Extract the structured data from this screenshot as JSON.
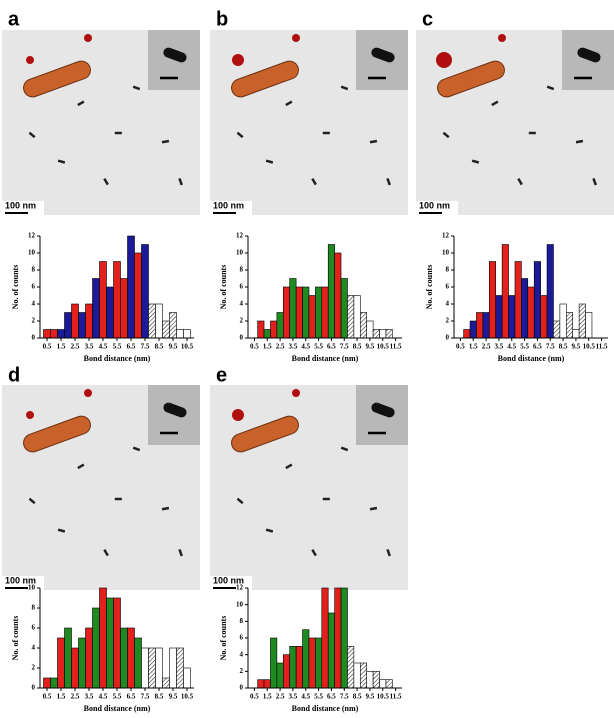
{
  "panels": [
    {
      "label": "a",
      "scale_bar": "100 nm"
    },
    {
      "label": "b",
      "scale_bar": "100 nm"
    },
    {
      "label": "c",
      "scale_bar": "100 nm"
    },
    {
      "label": "d",
      "scale_bar": "100 nm"
    },
    {
      "label": "e",
      "scale_bar": "100 nm"
    }
  ],
  "chart_data": [
    {
      "type": "bar",
      "x_label": "Bond distance (nm)",
      "y_label": "No. of counts",
      "x": [
        0.5,
        1.0,
        1.5,
        2.0,
        2.5,
        3.0,
        3.5,
        4.0,
        4.5,
        5.0,
        5.5,
        6.0,
        6.5,
        7.0,
        7.5,
        8.0,
        8.5,
        9.0,
        9.5,
        10.0,
        10.5
      ],
      "values": [
        1,
        1,
        1,
        3,
        4,
        3,
        4,
        7,
        9,
        6,
        9,
        7,
        12,
        10,
        11,
        4,
        4,
        2,
        3,
        1,
        1
      ],
      "colors": [
        "#e3211c",
        "#e3211c",
        "#1b1b9a",
        "#1b1b9a",
        "#e3211c",
        "#1b1b9a",
        "#e3211c",
        "#1b1b9a",
        "#e3211c",
        "#1b1b9a",
        "#e3211c",
        "#e3211c",
        "#1b1b9a",
        "#e3211c",
        "#1b1b9a",
        "hatch",
        "#ffffff",
        "hatch",
        "hatch",
        "#ffffff",
        "#ffffff"
      ],
      "xlim": [
        0,
        11
      ],
      "ylim": [
        0,
        12
      ],
      "xticks": [
        0.5,
        1.5,
        2.5,
        3.5,
        4.5,
        5.5,
        6.5,
        7.5,
        8.5,
        9.5,
        10.5
      ],
      "yticks": [
        0,
        2,
        4,
        6,
        8,
        10,
        12
      ]
    },
    {
      "type": "bar",
      "x_label": "Bond distance (nm)",
      "y_label": "No. of counts",
      "x": [
        1.0,
        1.5,
        2.0,
        2.5,
        3.0,
        3.5,
        4.0,
        4.5,
        5.0,
        5.5,
        6.0,
        6.5,
        7.0,
        7.5,
        8.0,
        8.5,
        9.0,
        9.5,
        10.0,
        10.5,
        11.0
      ],
      "values": [
        2,
        1,
        2,
        3,
        6,
        7,
        6,
        6,
        5,
        6,
        6,
        11,
        10,
        7,
        5,
        5,
        3,
        2,
        1,
        1,
        1
      ],
      "colors": [
        "#e3211c",
        "#1f8a1f",
        "#e3211c",
        "#1f8a1f",
        "#e3211c",
        "#1f8a1f",
        "#e3211c",
        "#1f8a1f",
        "#e3211c",
        "#1f8a1f",
        "#e3211c",
        "#1f8a1f",
        "#e3211c",
        "#1f8a1f",
        "hatch",
        "#ffffff",
        "hatch",
        "#ffffff",
        "hatch",
        "#ffffff",
        "hatch"
      ],
      "xlim": [
        0,
        12
      ],
      "ylim": [
        0,
        12
      ],
      "xticks": [
        0.5,
        1.5,
        2.5,
        3.5,
        4.5,
        5.5,
        6.5,
        7.5,
        8.5,
        9.5,
        10.5,
        11.5
      ],
      "yticks": [
        0,
        2,
        4,
        6,
        8,
        10,
        12
      ]
    },
    {
      "type": "bar",
      "x_label": "Bond distance (nm)",
      "y_label": "No. of counts",
      "x": [
        1.0,
        1.5,
        2.0,
        2.5,
        3.0,
        3.5,
        4.0,
        4.5,
        5.0,
        5.5,
        6.0,
        6.5,
        7.0,
        7.5,
        8.0,
        8.5,
        9.0,
        9.5,
        10.0,
        10.5
      ],
      "values": [
        1,
        2,
        3,
        3,
        9,
        5,
        11,
        5,
        9,
        7,
        6,
        9,
        5,
        11,
        2,
        4,
        3,
        1,
        4,
        3
      ],
      "colors": [
        "#e3211c",
        "#1b1b9a",
        "#e3211c",
        "#1b1b9a",
        "#e3211c",
        "#1b1b9a",
        "#e3211c",
        "#1b1b9a",
        "#e3211c",
        "#1b1b9a",
        "#e3211c",
        "#1b1b9a",
        "#e3211c",
        "#1b1b9a",
        "hatch",
        "#ffffff",
        "hatch",
        "#ffffff",
        "hatch",
        "#ffffff"
      ],
      "xlim": [
        0,
        12
      ],
      "ylim": [
        0,
        12
      ],
      "xticks": [
        0.5,
        1.5,
        2.5,
        3.5,
        4.5,
        5.5,
        6.5,
        7.5,
        8.5,
        9.5,
        10.5,
        11.5
      ],
      "yticks": [
        0,
        2,
        4,
        6,
        8,
        10,
        12
      ]
    },
    {
      "type": "bar",
      "x_label": "Bond distance (nm)",
      "y_label": "No. of counts",
      "x": [
        0.5,
        1.0,
        1.5,
        2.0,
        2.5,
        3.0,
        3.5,
        4.0,
        4.5,
        5.0,
        5.5,
        6.0,
        6.5,
        7.0,
        7.5,
        8.0,
        8.5,
        9.0,
        9.5,
        10.0,
        10.5
      ],
      "values": [
        1,
        1,
        5,
        6,
        4,
        5,
        6,
        8,
        10,
        9,
        9,
        6,
        6,
        5,
        4,
        4,
        4,
        1,
        4,
        4,
        2
      ],
      "colors": [
        "#e3211c",
        "#1f8a1f",
        "#e3211c",
        "#1f8a1f",
        "#e3211c",
        "#1f8a1f",
        "#e3211c",
        "#1f8a1f",
        "#e3211c",
        "#1f8a1f",
        "#e3211c",
        "#1f8a1f",
        "#e3211c",
        "#1f8a1f",
        "#ffffff",
        "hatch",
        "#ffffff",
        "hatch",
        "#ffffff",
        "hatch",
        "#ffffff"
      ],
      "xlim": [
        0,
        11
      ],
      "ylim": [
        0,
        10
      ],
      "xticks": [
        0.5,
        1.5,
        2.5,
        3.5,
        4.5,
        5.5,
        6.5,
        7.5,
        8.5,
        9.5,
        10.5
      ],
      "yticks": [
        0,
        2,
        4,
        6,
        8,
        10
      ]
    },
    {
      "type": "bar",
      "x_label": "Bond distance (nm)",
      "y_label": "No. of counts",
      "x": [
        1.0,
        1.5,
        2.0,
        2.5,
        3.0,
        3.5,
        4.0,
        4.5,
        5.0,
        5.5,
        6.0,
        6.5,
        7.0,
        7.5,
        8.0,
        8.5,
        9.0,
        9.5,
        10.0,
        10.5,
        11.0
      ],
      "values": [
        1,
        1,
        6,
        3,
        4,
        5,
        5,
        7,
        6,
        6,
        12,
        9,
        12,
        12,
        5,
        3,
        3,
        2,
        2,
        1,
        1
      ],
      "colors": [
        "#e3211c",
        "#e3211c",
        "#1f8a1f",
        "#1f8a1f",
        "#e3211c",
        "#1f8a1f",
        "#e3211c",
        "#1f8a1f",
        "#e3211c",
        "#1f8a1f",
        "#e3211c",
        "#1f8a1f",
        "#e3211c",
        "#1f8a1f",
        "hatch",
        "#ffffff",
        "hatch",
        "#ffffff",
        "hatch",
        "#ffffff",
        "hatch"
      ],
      "xlim": [
        0,
        12
      ],
      "ylim": [
        0,
        12
      ],
      "xticks": [
        0.5,
        1.5,
        2.5,
        3.5,
        4.5,
        5.5,
        6.5,
        7.5,
        8.5,
        9.5,
        10.5,
        11.5
      ],
      "yticks": [
        0,
        2,
        4,
        6,
        8,
        10,
        12
      ]
    }
  ]
}
